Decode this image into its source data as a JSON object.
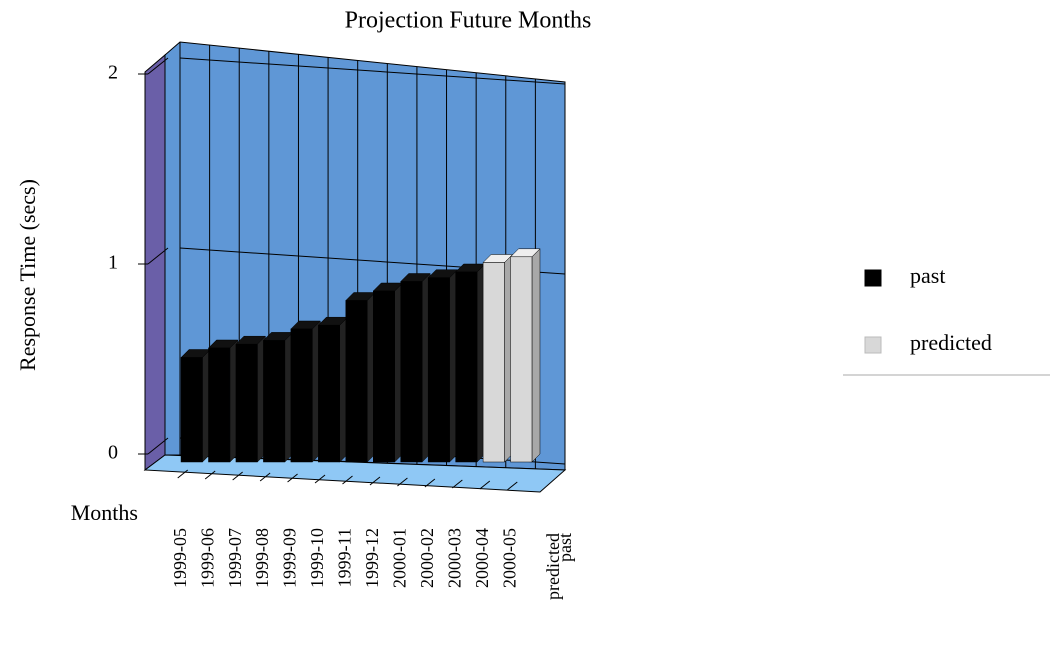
{
  "chart_data": {
    "type": "bar3d",
    "title": "Projection Future Months",
    "y_label": "Response Time (secs)",
    "x_label": "Months",
    "categories": [
      "1999-05",
      "1999-06",
      "1999-07",
      "1999-08",
      "1999-09",
      "1999-10",
      "1999-11",
      "1999-12",
      "2000-01",
      "2000-02",
      "2000-03",
      "2000-04",
      "2000-05"
    ],
    "series": [
      {
        "name": "past",
        "color": "#000000",
        "values": [
          0.55,
          0.6,
          0.62,
          0.64,
          0.7,
          0.72,
          0.85,
          0.9,
          0.95,
          0.97,
          1.0,
          null,
          null
        ]
      },
      {
        "name": "predicted",
        "color": "#d8d8d8",
        "values": [
          null,
          null,
          null,
          null,
          null,
          null,
          null,
          null,
          null,
          null,
          null,
          1.05,
          1.08
        ]
      }
    ],
    "ylim": [
      0,
      2
    ],
    "yticks": [
      0,
      1,
      2
    ],
    "grid": true
  }
}
